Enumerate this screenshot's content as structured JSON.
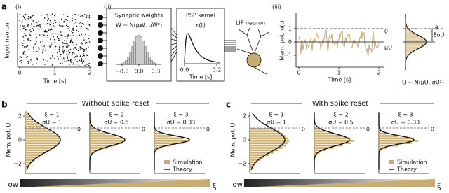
{
  "panel_a": {
    "label": "a",
    "sub_i": "(i)",
    "raster_ylabel": "Input neuron",
    "raster_xticks": [
      "0",
      "1",
      "2"
    ],
    "raster_xlabel": "Time [s]",
    "sub_ii": "(ii)",
    "weights_title": "Synaptic weights",
    "weights_formula": "W ~ N(μW, σW²)",
    "weights_xticks": [
      "−0.3",
      "0.0",
      "0.3"
    ],
    "psp_title": "PSP kernel",
    "psp_formula": "ε(t)",
    "psp_xticks": [
      "0.0",
      "0.2"
    ],
    "psp_xlabel": "Time [s]",
    "lif_label": "LIF neuron",
    "sub_iii": "(iii)",
    "trace_ylabel": "Mem. pot. u(t)",
    "trace_yticks": [
      "1",
      "0",
      "−1"
    ],
    "trace_xticks": [
      "0",
      "1",
      "2"
    ],
    "trace_xlabel": "Time [s]",
    "theta": "θ",
    "mu": "μU",
    "xi_sigma": "ξσU",
    "dist_formula": "U ~ N(μU, σU²)"
  },
  "panel_b": {
    "label": "b",
    "title": "Without spike reset"
  },
  "panel_c": {
    "label": "c",
    "title": "With spike reset"
  },
  "shared": {
    "ylabel": "Mem. pot. U",
    "yticks": [
      "2",
      "0",
      "−2"
    ],
    "theta": "θ",
    "panels": [
      {
        "xi": "ξ = 1",
        "sigma": "σU = 1"
      },
      {
        "xi": "ξ = 2",
        "sigma": "σU = 0.5"
      },
      {
        "xi": "ξ = 3",
        "sigma": "σU = 0.33"
      }
    ],
    "legend": [
      "Simulation",
      "Theory"
    ],
    "sigma_w": "σw",
    "xi": "ξ"
  }
}
